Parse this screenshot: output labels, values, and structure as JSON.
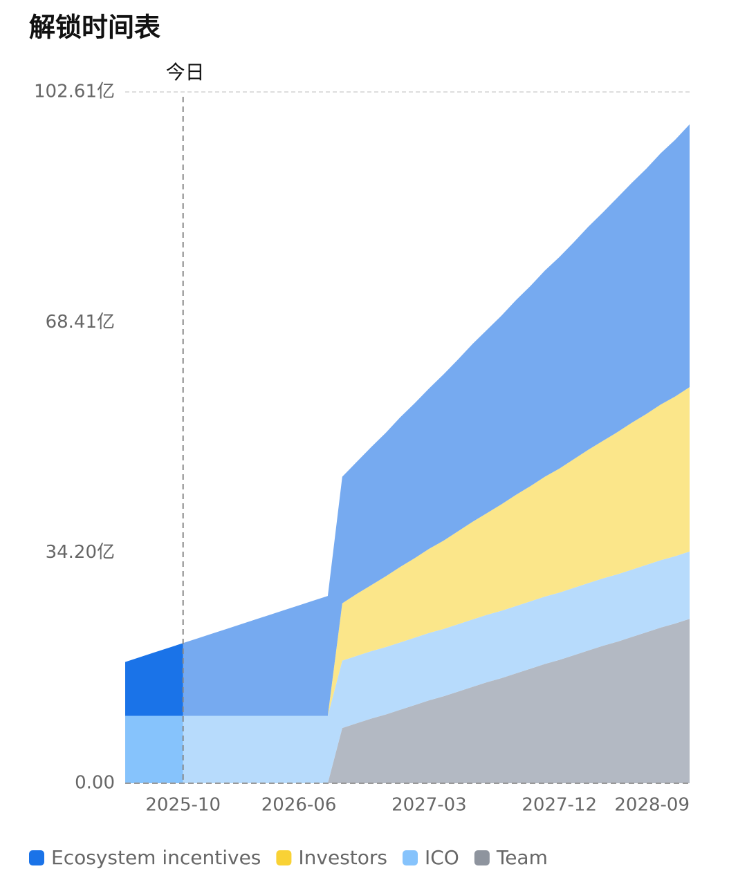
{
  "chart_data": {
    "type": "stacked_area",
    "title": "解锁时间表",
    "today_label": "今日",
    "today": "2025-10",
    "x": [
      "2025-06",
      "2025-07",
      "2025-08",
      "2025-09",
      "2025-10",
      "2025-11",
      "2025-12",
      "2026-01",
      "2026-02",
      "2026-03",
      "2026-04",
      "2026-05",
      "2026-06",
      "2026-07",
      "2026-08",
      "2026-09",
      "2026-10",
      "2026-11",
      "2026-12",
      "2027-01",
      "2027-02",
      "2027-03",
      "2027-04",
      "2027-05",
      "2027-06",
      "2027-07",
      "2027-08",
      "2027-09",
      "2027-10",
      "2027-11",
      "2027-12",
      "2028-01",
      "2028-02",
      "2028-03",
      "2028-04",
      "2028-05",
      "2028-06",
      "2028-07",
      "2028-08",
      "2028-09"
    ],
    "xticks": [
      "2025-10",
      "2026-06",
      "2027-03",
      "2027-12",
      "2028-09"
    ],
    "ylim": [
      0,
      102.61
    ],
    "yticks": [
      {
        "value": 0,
        "label": "0.00"
      },
      {
        "value": 34.2,
        "label": "34.20亿"
      },
      {
        "value": 68.41,
        "label": "68.41亿"
      },
      {
        "value": 102.61,
        "label": "102.61亿"
      }
    ],
    "series": [
      {
        "name": "Ecosystem incentives",
        "color": "#1a73e8",
        "faded_color": "#76aaf0",
        "values": [
          8.0,
          8.7,
          9.4,
          10.1,
          10.8,
          11.5,
          12.2,
          12.9,
          13.6,
          14.3,
          15.0,
          15.7,
          16.4,
          17.1,
          17.8,
          18.8,
          19.6,
          20.5,
          21.3,
          22.2,
          23.0,
          23.8,
          24.7,
          25.5,
          26.4,
          27.2,
          28.0,
          28.9,
          29.7,
          30.6,
          31.4,
          32.2,
          33.1,
          33.9,
          34.8,
          35.6,
          36.4,
          37.3,
          38.1,
          39.0
        ]
      },
      {
        "name": "Investors",
        "color": "#f9d235",
        "faded_color": "#fbe68a",
        "values": [
          0,
          0,
          0,
          0,
          0,
          0,
          0,
          0,
          0,
          0,
          0,
          0,
          0,
          0,
          0,
          8.5,
          9.2,
          9.8,
          10.5,
          11.2,
          11.8,
          12.5,
          13.1,
          13.8,
          14.5,
          15.1,
          15.8,
          16.5,
          17.1,
          17.8,
          18.4,
          19.1,
          19.8,
          20.4,
          21.1,
          21.8,
          22.4,
          23.1,
          23.7,
          24.4
        ]
      },
      {
        "name": "ICO",
        "color": "#86c3fc",
        "faded_color": "#b7dbfc",
        "values": [
          10,
          10,
          10,
          10,
          10,
          10,
          10,
          10,
          10,
          10,
          10,
          10,
          10,
          10,
          10,
          10,
          10,
          10,
          10,
          10,
          10,
          10,
          10,
          10,
          10,
          10,
          10,
          10,
          10,
          10,
          10,
          10,
          10,
          10,
          10,
          10,
          10,
          10,
          10,
          10
        ]
      },
      {
        "name": "Team",
        "color": "#8e949e",
        "faded_color": "#b3b9c3",
        "values": [
          0,
          0,
          0,
          0,
          0,
          0,
          0,
          0,
          0,
          0,
          0,
          0,
          0,
          0,
          0,
          8.2,
          8.9,
          9.6,
          10.2,
          10.9,
          11.6,
          12.3,
          12.9,
          13.6,
          14.3,
          15.0,
          15.6,
          16.3,
          17.0,
          17.7,
          18.3,
          19.0,
          19.7,
          20.4,
          21.0,
          21.7,
          22.4,
          23.1,
          23.7,
          24.4
        ]
      }
    ]
  }
}
